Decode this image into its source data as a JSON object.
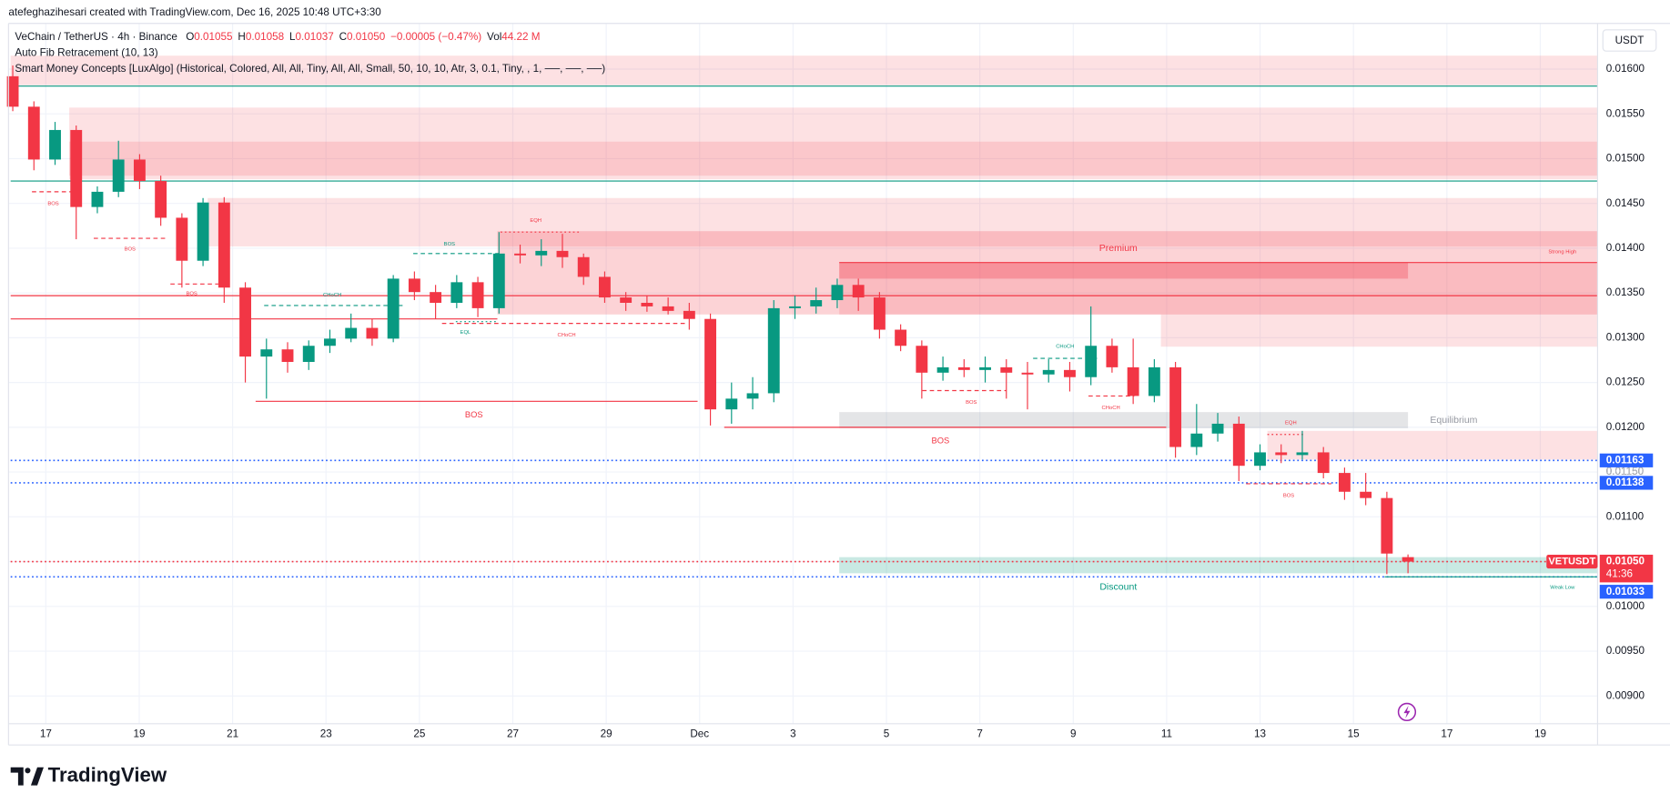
{
  "header": {
    "credit": "atefeghazihesari created with TradingView.com, Dec 16, 2025 10:48 UTC+3:30",
    "symbol": "VeChain / TetherUS · 4h · Binance",
    "o_label": "O",
    "o": "0.01055",
    "h_label": "H",
    "h": "0.01058",
    "l_label": "L",
    "l": "0.01037",
    "c_label": "C",
    "c": "0.01050",
    "change": "−0.00005 (−0.47%)",
    "vol_label": "Vol",
    "vol": "44.22 M",
    "indicators": [
      "Auto Fib Retracement (10, 13)",
      "Smart Money Concepts [LuxAlgo] (Historical, Colored, All, All, Tiny, All, All, Small, 50, 10, 10, Atr, 3, 0.1, Tiny, , 1, ──, ──, ──)"
    ],
    "currency": "USDT"
  },
  "footer": {
    "brand": "TradingView"
  },
  "chart_data": {
    "type": "candlestick",
    "up_color": "#089981",
    "down_color": "#f23645",
    "grid": true,
    "xtick_labels": [
      "17",
      "19",
      "21",
      "23",
      "25",
      "27",
      "29",
      "Dec",
      "3",
      "5",
      "7",
      "9",
      "11",
      "13",
      "15",
      "17",
      "19"
    ],
    "open": [
      0.01592,
      0.01558,
      0.01499,
      0.01532,
      0.01446,
      0.01463,
      0.01499,
      0.01475,
      0.01434,
      0.01386,
      0.01451,
      0.01356,
      0.01279,
      0.01287,
      0.01273,
      0.01291,
      0.01299,
      0.01311,
      0.01299,
      0.01366,
      0.01351,
      0.01339,
      0.01362,
      0.01333,
      0.01394,
      0.01392,
      0.01397,
      0.0139,
      0.01368,
      0.01345,
      0.01339,
      0.01335,
      0.0133,
      0.01321,
      0.0122,
      0.01232,
      0.01238,
      0.01333,
      0.01335,
      0.01342,
      0.01359,
      0.01345,
      0.01309,
      0.01291,
      0.01261,
      0.01267,
      0.01264,
      0.01267,
      0.01261,
      0.01259,
      0.01264,
      0.01256,
      0.01291,
      0.01267,
      0.01235,
      0.01267,
      0.01178,
      0.01193,
      0.01204,
      0.01157,
      0.01172,
      0.01169,
      0.01172,
      0.01149,
      0.01128,
      0.01121,
      0.01055
    ],
    "high": [
      0.01604,
      0.01564,
      0.01541,
      0.01537,
      0.01469,
      0.0152,
      0.01505,
      0.01481,
      0.01439,
      0.01456,
      0.01457,
      0.01362,
      0.01299,
      0.01295,
      0.01297,
      0.01309,
      0.01327,
      0.01321,
      0.0137,
      0.01374,
      0.01359,
      0.0137,
      0.01368,
      0.01418,
      0.01404,
      0.0141,
      0.01416,
      0.01394,
      0.01374,
      0.01351,
      0.01347,
      0.01345,
      0.01339,
      0.01327,
      0.0125,
      0.01256,
      0.01342,
      0.01347,
      0.01356,
      0.01366,
      0.01366,
      0.01351,
      0.01315,
      0.01297,
      0.01279,
      0.01276,
      0.01279,
      0.01276,
      0.01273,
      0.01276,
      0.01273,
      0.01335,
      0.01299,
      0.01299,
      0.01276,
      0.01273,
      0.01226,
      0.01216,
      0.01212,
      0.01181,
      0.01181,
      0.01196,
      0.01178,
      0.01155,
      0.01149,
      0.01128,
      0.01058
    ],
    "low": [
      0.01553,
      0.01487,
      0.01493,
      0.0141,
      0.01439,
      0.01457,
      0.01466,
      0.01425,
      0.01356,
      0.0138,
      0.01339,
      0.0125,
      0.01232,
      0.01261,
      0.01264,
      0.01283,
      0.01295,
      0.01291,
      0.01295,
      0.01342,
      0.01321,
      0.01333,
      0.01323,
      0.01327,
      0.01383,
      0.0138,
      0.01378,
      0.01359,
      0.01339,
      0.0133,
      0.01329,
      0.01326,
      0.01309,
      0.01202,
      0.01204,
      0.0122,
      0.01228,
      0.01321,
      0.01327,
      0.01333,
      0.0133,
      0.01299,
      0.01285,
      0.01232,
      0.01252,
      0.01256,
      0.0125,
      0.01232,
      0.0122,
      0.0125,
      0.0124,
      0.01247,
      0.01261,
      0.01226,
      0.01228,
      0.01166,
      0.01169,
      0.01184,
      0.0114,
      0.01152,
      0.0116,
      0.01164,
      0.01143,
      0.01119,
      0.01113,
      0.01036,
      0.01037
    ],
    "close": [
      0.01558,
      0.01499,
      0.01532,
      0.01446,
      0.01463,
      0.01499,
      0.01475,
      0.01434,
      0.01386,
      0.01451,
      0.01356,
      0.01279,
      0.01287,
      0.01273,
      0.01291,
      0.01299,
      0.01311,
      0.01299,
      0.01366,
      0.01351,
      0.01339,
      0.01362,
      0.01333,
      0.01394,
      0.01392,
      0.01397,
      0.0139,
      0.01368,
      0.01345,
      0.01339,
      0.01335,
      0.0133,
      0.01321,
      0.0122,
      0.01232,
      0.01238,
      0.01333,
      0.01335,
      0.01342,
      0.01359,
      0.01345,
      0.01309,
      0.01291,
      0.01261,
      0.01267,
      0.01264,
      0.01267,
      0.01261,
      0.01259,
      0.01264,
      0.01256,
      0.01291,
      0.01267,
      0.01235,
      0.01267,
      0.01178,
      0.01193,
      0.01204,
      0.01157,
      0.01172,
      0.01169,
      0.01172,
      0.01149,
      0.01128,
      0.01121,
      0.01059,
      0.0105
    ],
    "ylim": [
      0.00869,
      0.01651
    ],
    "yticks": [
      {
        "value": 0.009,
        "label": "0.00900"
      },
      {
        "value": 0.0095,
        "label": "0.00950"
      },
      {
        "value": 0.01,
        "label": "0.01000"
      },
      {
        "value": 0.0105,
        "label": "0.01050"
      },
      {
        "value": 0.011,
        "label": "0.01100"
      },
      {
        "value": 0.0115,
        "label": "0.01150"
      },
      {
        "value": 0.012,
        "label": "0.01200"
      },
      {
        "value": 0.0125,
        "label": "0.01250"
      },
      {
        "value": 0.013,
        "label": "0.01300"
      },
      {
        "value": 0.0135,
        "label": "0.01350"
      },
      {
        "value": 0.014,
        "label": "0.01400"
      },
      {
        "value": 0.0145,
        "label": "0.01450"
      },
      {
        "value": 0.015,
        "label": "0.01500"
      },
      {
        "value": 0.0155,
        "label": "0.01550"
      },
      {
        "value": 0.016,
        "label": "0.01600"
      }
    ],
    "zones": [
      {
        "top": 0.01615,
        "bottom": 0.01582,
        "color": "rgba(242,54,69,0.15)"
      },
      {
        "top": 0.01557,
        "bottom": 0.01477,
        "color": "rgba(242,54,69,0.15)"
      },
      {
        "top": 0.01519,
        "bottom": 0.01481,
        "color": "rgba(242,54,69,0.15)"
      },
      {
        "top": 0.01456,
        "bottom": 0.01402,
        "color": "rgba(242,54,69,0.15)"
      },
      {
        "top": 0.01419,
        "bottom": 0.01326,
        "color": "rgba(242,54,69,0.22)"
      },
      {
        "top": 0.01326,
        "bottom": 0.0129,
        "color": "rgba(242,54,69,0.15)"
      },
      {
        "top": 0.01384,
        "bottom": 0.01326,
        "color": "rgba(242,54,69,0.15)",
        "label": "Premium"
      },
      {
        "top": 0.01384,
        "bottom": 0.01366,
        "color": "rgba(242,54,69,0.3)"
      },
      {
        "top": 0.01217,
        "bottom": 0.01199,
        "color": "rgba(120,123,134,0.2)",
        "label": "Equilibrium"
      },
      {
        "top": 0.01196,
        "bottom": 0.01164,
        "color": "rgba(242,54,69,0.15)"
      },
      {
        "top": 0.01055,
        "bottom": 0.01037,
        "color": "rgba(8,153,129,0.22)",
        "label": "Discount"
      }
    ],
    "structures": [
      {
        "label": "BOS",
        "price": 0.01463,
        "color": "#f23645",
        "style": "dashed"
      },
      {
        "label": "BOS",
        "price": 0.01411,
        "color": "#f23645",
        "style": "dashed"
      },
      {
        "label": "BOS",
        "price": 0.0136,
        "color": "#f23645",
        "style": "dashed"
      },
      {
        "label": "CHoCH",
        "price": 0.01336,
        "color": "#089981",
        "style": "dashed"
      },
      {
        "label": "BOS",
        "price": 0.01394,
        "color": "#089981",
        "style": "dashed"
      },
      {
        "label": "EQL",
        "price": 0.01318,
        "color": "#089981",
        "style": "dotted"
      },
      {
        "label": "CHoCH",
        "price": 0.01316,
        "color": "#f23645",
        "style": "dashed"
      },
      {
        "label": "EQH",
        "price": 0.01418,
        "color": "#f23645",
        "style": "dotted"
      },
      {
        "label": "BOS",
        "price": 0.01229,
        "color": "#f23645",
        "style": "solid"
      },
      {
        "label": "BOS",
        "price": 0.012,
        "color": "#f23645",
        "style": "solid"
      },
      {
        "label": "BOS",
        "price": 0.01241,
        "color": "#f23645",
        "style": "dashed"
      },
      {
        "label": "CHoCH",
        "price": 0.01277,
        "color": "#089981",
        "style": "dashed"
      },
      {
        "label": "CHoCH",
        "price": 0.01235,
        "color": "#f23645",
        "style": "dashed"
      },
      {
        "label": "EQH",
        "price": 0.01192,
        "color": "#f23645",
        "style": "dotted"
      },
      {
        "label": "BOS",
        "price": 0.01137,
        "color": "#f23645",
        "style": "dashed"
      },
      {
        "label": "Weak Low",
        "price": 0.01033,
        "color": "#089981",
        "style": "solid"
      },
      {
        "label": "Strong High",
        "price": 0.01384,
        "color": "#f23645",
        "style": "solid"
      }
    ],
    "levels": [
      {
        "price": 0.01581,
        "color": "#089981",
        "style": "solid"
      },
      {
        "price": 0.01475,
        "color": "#089981",
        "style": "solid"
      },
      {
        "price": 0.01347,
        "color": "#f23645",
        "style": "solid"
      },
      {
        "price": 0.01321,
        "color": "#f23645",
        "style": "solid"
      },
      {
        "price": 0.01163,
        "color": "#2962ff",
        "style": "dotted"
      },
      {
        "price": 0.01138,
        "color": "#2962ff",
        "style": "dotted"
      },
      {
        "price": 0.0105,
        "color": "#f23645",
        "style": "dotted"
      },
      {
        "price": 0.01033,
        "color": "#2962ff",
        "style": "dotted"
      }
    ],
    "price_tags": [
      {
        "value": 0.0115,
        "label": "0.01150",
        "color": "#b2b5be"
      },
      {
        "value": 0.01163,
        "label": "0.01163",
        "color": "#2962ff"
      },
      {
        "value": 0.01138,
        "label": "0.01138",
        "color": "#2962ff"
      },
      {
        "value": 0.0105,
        "label": "0.01050",
        "color": "#f23645"
      },
      {
        "value": 0.01033,
        "label": "0.01033",
        "color": "#2962ff"
      }
    ],
    "symbol_tag": "VETUSDT",
    "countdown": "41:36"
  }
}
